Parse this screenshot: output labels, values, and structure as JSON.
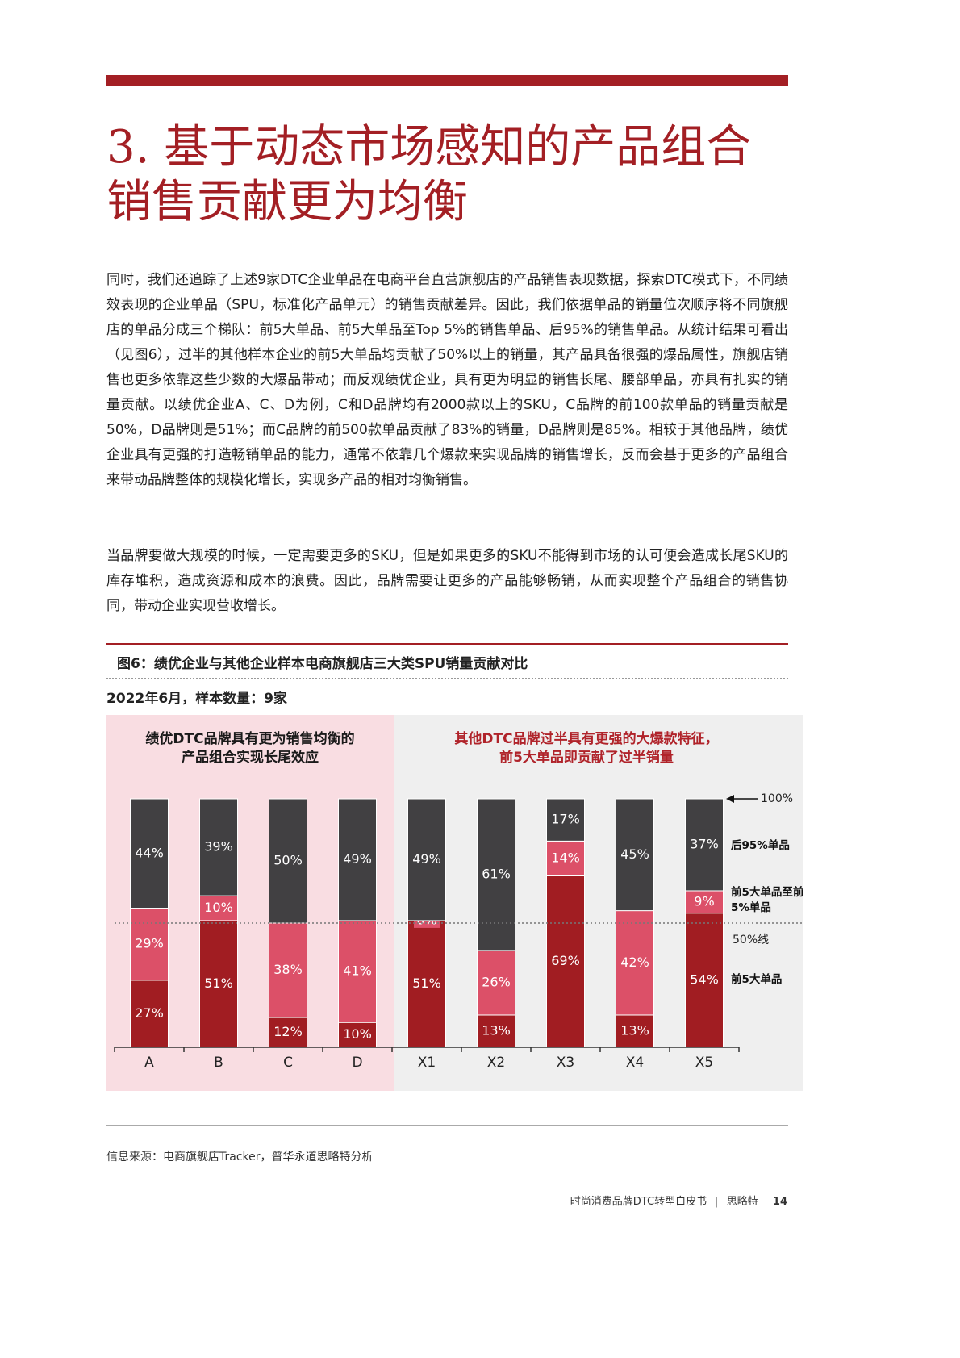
{
  "header": {
    "title_lines": [
      "3. 基于动态市场感知的产品组合",
      "销售贡献更为均衡"
    ]
  },
  "paragraphs": [
    "同时，我们还追踪了上述9家DTC企业单品在电商平台直营旗舰店的产品销售表现数据，探索DTC模式下，不同绩效表现的企业单品（SPU，标准化产品单元）的销售贡献差异。因此，我们依据单品的销量位次顺序将不同旗舰店的单品分成三个梯队：前5大单品、前5大单品至Top 5%的销售单品、后95%的销售单品。从统计结果可看出（见图6），过半的其他样本企业的前5大单品均贡献了50%以上的销量，其产品具备很强的爆品属性，旗舰店销售也更多依靠这些少数的大爆品带动；而反观绩优企业，具有更为明显的销售长尾、腰部单品，亦具有扎实的销量贡献。以绩优企业A、C、D为例，C和D品牌均有2000款以上的SKU，C品牌的前100款单品的销量贡献是50%，D品牌则是51%；而C品牌的前500款单品贡献了83%的销量，D品牌则是85%。相较于其他品牌，绩优企业具有更强的打造畅销单品的能力，通常不依靠几个爆款来实现品牌的销售增长，反而会基于更多的产品组合来带动品牌整体的规模化增长，实现多产品的相对均衡销售。",
    "当品牌要做大规模的时候，一定需要更多的SKU，但是如果更多的SKU不能得到市场的认可便会造成长尾SKU的库存堆积，造成资源和成本的浪费。因此，品牌需要让更多的产品能够畅销，从而实现整个产品组合的销售协同，带动企业实现营收增长。"
  ],
  "figure": {
    "title": "图6：绩优企业与其他企业样本电商旗舰店三大类SPU销量贡献对比",
    "subtitle": "2022年6月，样本数量：9家"
  },
  "chart_data": {
    "type": "stacked_bar",
    "categories": [
      "A",
      "B",
      "C",
      "D",
      "X1",
      "X2",
      "X3",
      "X4",
      "X5"
    ],
    "group_labels": [
      {
        "lines": [
          "绩优DTC品牌具有更为销售均衡的",
          "产品组合实现长尾效应"
        ],
        "color": "#1a1a1a"
      },
      {
        "lines": [
          "其他DTC品牌过半具有更强的大爆款特征，",
          "前5大单品即贡献了过半销量"
        ],
        "color": "#b0232a"
      }
    ],
    "series": [
      {
        "name": "前5大单品",
        "color": "#a11d22",
        "values": [
          27,
          51,
          12,
          10,
          51,
          13,
          69,
          13,
          54
        ],
        "value_labels": [
          "27%",
          "51%",
          "12%",
          "10%",
          "51%",
          "13%",
          "69%",
          "13%",
          "54%"
        ]
      },
      {
        "name": "前5大单品至前5%单品",
        "color": "#dc5068",
        "values": [
          29,
          10,
          38,
          41,
          0,
          26,
          14,
          42,
          9
        ],
        "value_labels": [
          "29%",
          "10%",
          "38%",
          "41%",
          "0%",
          "26%",
          "14%",
          "42%",
          "9%"
        ]
      },
      {
        "name": "后95%单品",
        "color": "#414042",
        "values": [
          44,
          39,
          50,
          49,
          49,
          61,
          17,
          45,
          37
        ],
        "value_labels": [
          "44%",
          "39%",
          "50%",
          "49%",
          "49%",
          "61%",
          "17%",
          "45%",
          "37%"
        ]
      }
    ],
    "ylim": [
      0,
      100
    ],
    "top_marker": {
      "value": 100,
      "label": "100%"
    },
    "reference_line": {
      "value": 50,
      "label": "50%线"
    }
  },
  "source": "信息来源：电商旗舰店Tracker，普华永道思略特分析",
  "footer": {
    "publication": "时尚消费品牌DTC转型白皮书",
    "brand": "思略特",
    "page": "14"
  }
}
